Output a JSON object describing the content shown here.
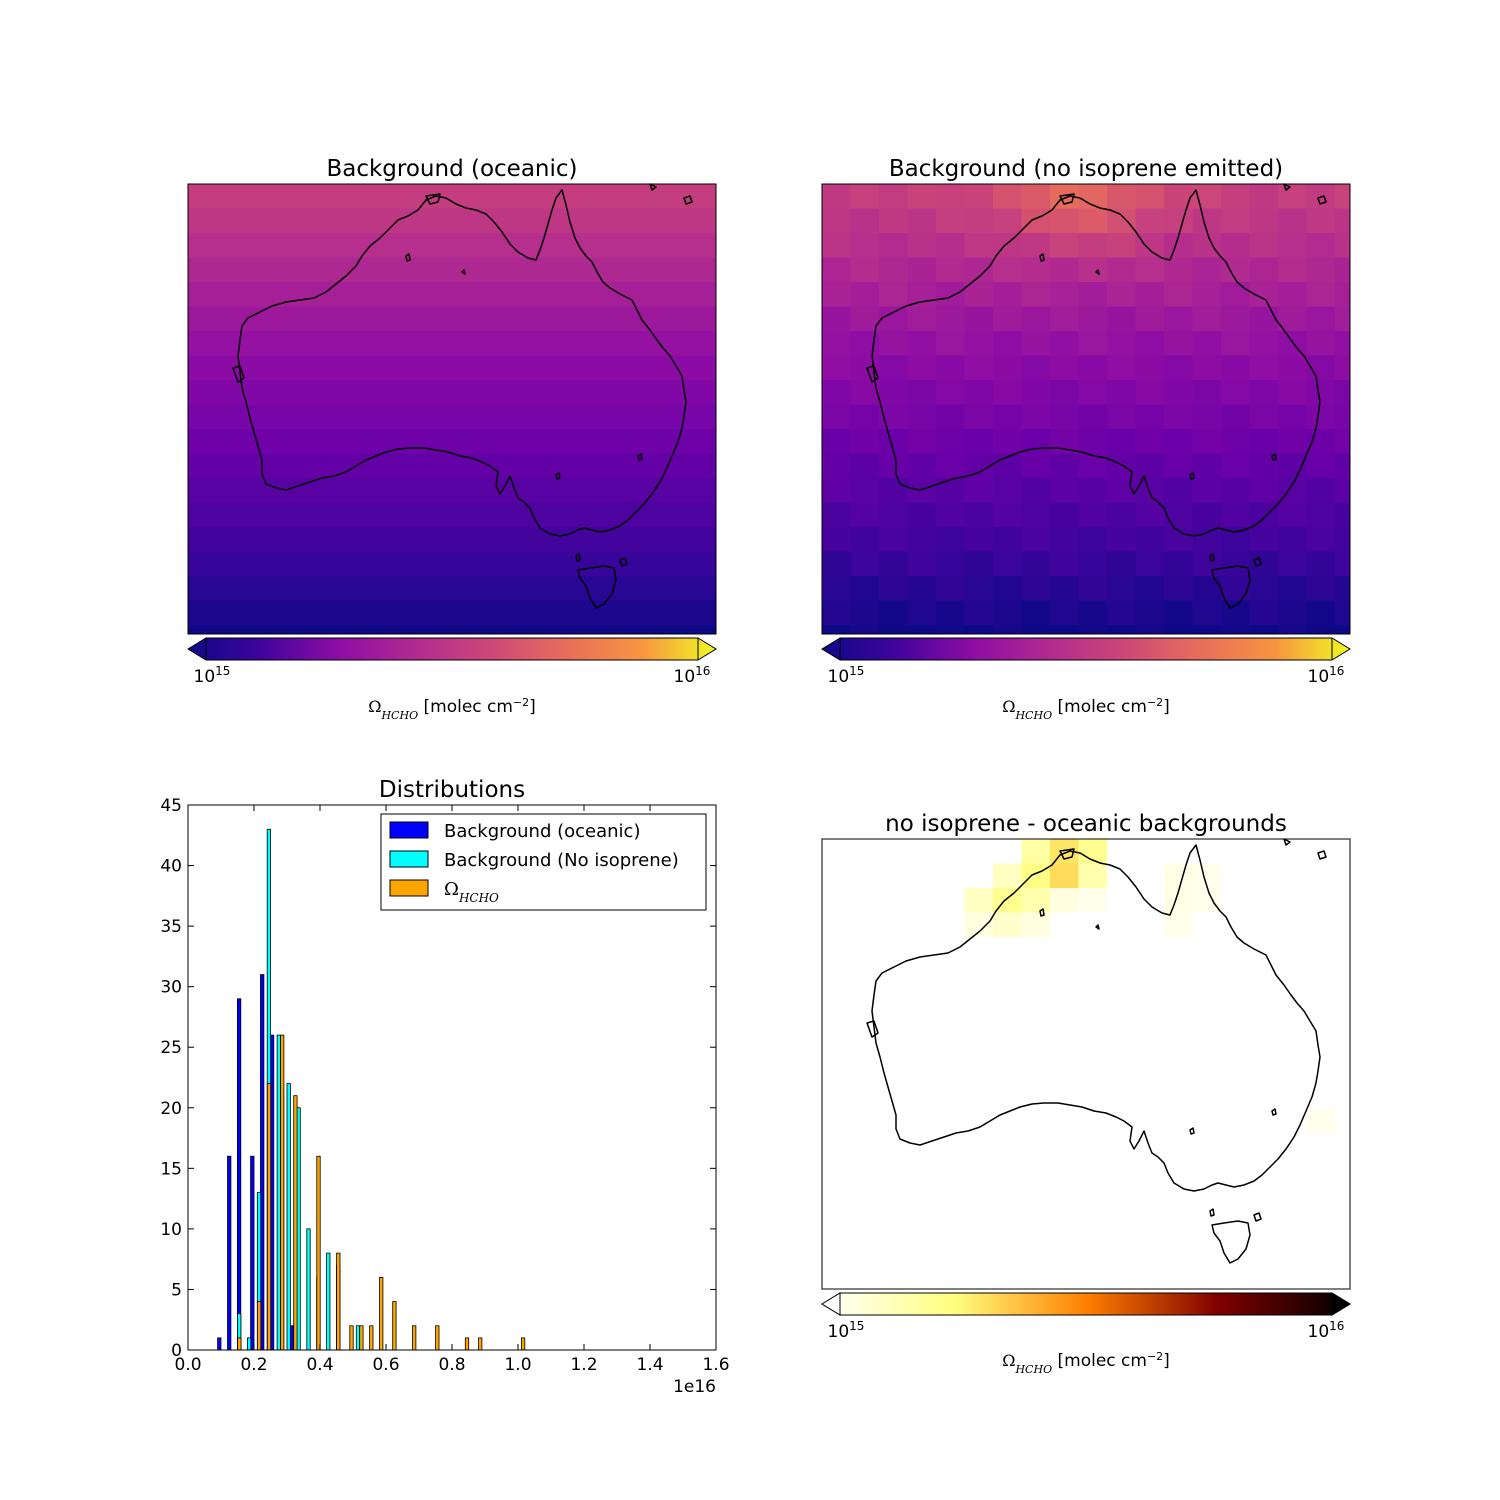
{
  "maps": [
    {
      "title": "Background (oceanic)",
      "cmap": "plasma",
      "cbar_min_label": "10^15",
      "cbar_max_label": "10^16",
      "cbar_label": "Ω_HCHO [molec cm^-2]",
      "extend": "both"
    },
    {
      "title": "Background (no isoprene emitted)",
      "cmap": "plasma",
      "cbar_min_label": "10^15",
      "cbar_max_label": "10^16",
      "cbar_label": "Ω_HCHO [molec cm^-2]",
      "extend": "both"
    },
    {
      "title": "no isoprene - oceanic backgrounds",
      "cmap": "afmhot_r",
      "cbar_min_label": "10^15",
      "cbar_max_label": "10^16",
      "cbar_label": "Ω_HCHO [molec cm^-2]",
      "extend": "both"
    }
  ],
  "chart_data": {
    "type": "bar",
    "title": "Distributions",
    "xlim": [
      0.0,
      1.6
    ],
    "ylim": [
      0,
      45
    ],
    "x_offset_label": "1e16",
    "x_ticks": [
      "0.0",
      "0.2",
      "0.4",
      "0.6",
      "0.8",
      "1.0",
      "1.2",
      "1.4",
      "1.6"
    ],
    "y_ticks": [
      "0",
      "5",
      "10",
      "15",
      "20",
      "25",
      "30",
      "35",
      "40",
      "45"
    ],
    "legend_position": "top-right",
    "series": [
      {
        "name": "Background (oceanic)",
        "color": "#0000ff",
        "bins": [
          0.1,
          0.13,
          0.16,
          0.2,
          0.23,
          0.26,
          0.29,
          0.32
        ],
        "values": [
          1,
          16,
          29,
          16,
          31,
          26,
          21,
          2
        ]
      },
      {
        "name": "Background (No isoprene)",
        "color": "#00ffff",
        "bins": [
          0.15,
          0.18,
          0.21,
          0.24,
          0.27,
          0.3,
          0.33,
          0.36,
          0.39,
          0.42,
          0.45,
          0.48,
          0.51
        ],
        "values": [
          3,
          1,
          13,
          43,
          26,
          22,
          20,
          10,
          6,
          8,
          7,
          0,
          2
        ]
      },
      {
        "name": "Ω_HCHO",
        "color": "#ffa500",
        "bins": [
          0.14,
          0.2,
          0.23,
          0.27,
          0.31,
          0.38,
          0.44,
          0.48,
          0.51,
          0.54,
          0.57,
          0.61,
          0.67,
          0.74,
          0.83,
          0.87,
          1.0
        ],
        "values": [
          1,
          4,
          22,
          26,
          21,
          16,
          8,
          2,
          2,
          2,
          6,
          4,
          2,
          2,
          1,
          1,
          1
        ]
      }
    ]
  }
}
